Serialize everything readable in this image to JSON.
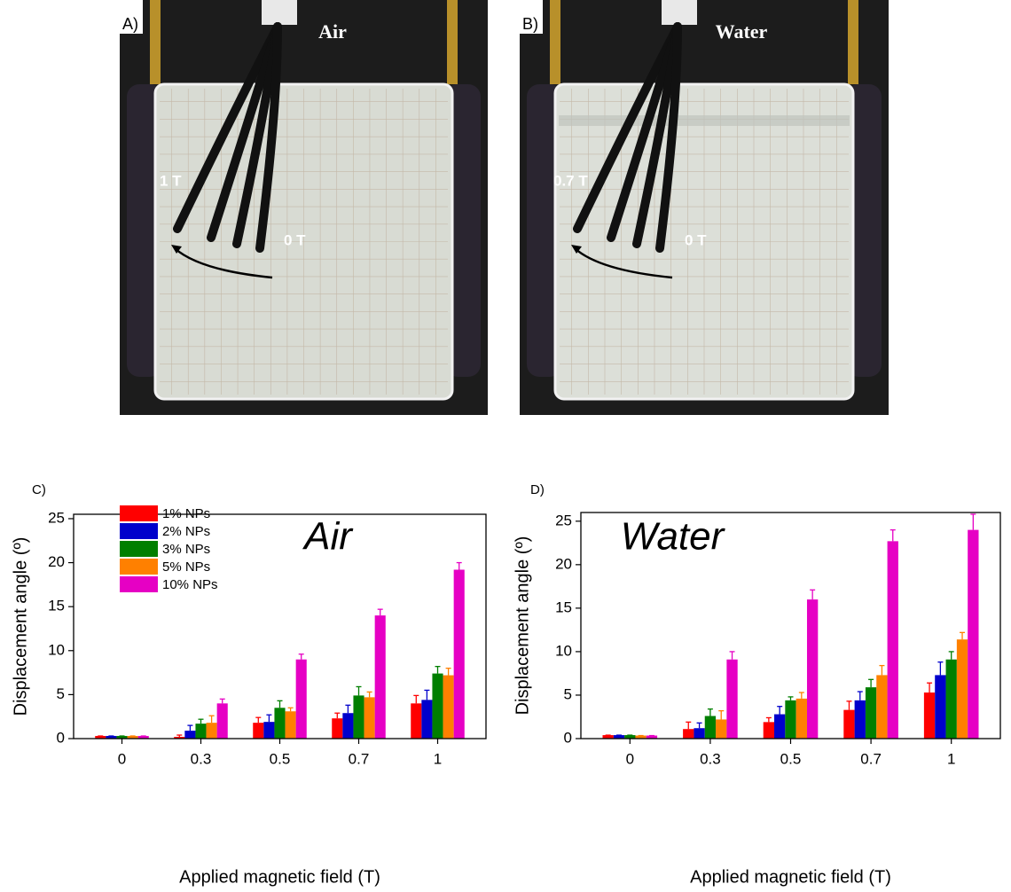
{
  "photos": [
    {
      "label": "A)",
      "medium": "Air",
      "field_label": "1 T",
      "zero_label": "0 T"
    },
    {
      "label": "B)",
      "medium": "Water",
      "field_label": "0.7 T",
      "zero_label": "0 T"
    }
  ],
  "chart_data": [
    {
      "type": "bar",
      "panel_label": "C)",
      "title": "Air",
      "y_label": "Displacement angle (º)",
      "x_label": "Applied magnetic field (T)",
      "categories": [
        "0",
        "0.3",
        "0.5",
        "0.7",
        "1"
      ],
      "series": [
        {
          "name": "1% NPs",
          "color": "#ff0000",
          "values": [
            0.3,
            0.2,
            1.8,
            2.3,
            4.0
          ],
          "errors": [
            0,
            0.2,
            0.6,
            0.6,
            0.9
          ]
        },
        {
          "name": "2% NPs",
          "color": "#0000cc",
          "values": [
            0.3,
            0.9,
            1.9,
            2.9,
            4.4
          ],
          "errors": [
            0,
            0.6,
            0.8,
            0.9,
            1.1
          ]
        },
        {
          "name": "3% NPs",
          "color": "#007f00",
          "values": [
            0.3,
            1.7,
            3.5,
            4.9,
            7.4
          ],
          "errors": [
            0,
            0.5,
            0.8,
            1.0,
            0.8
          ]
        },
        {
          "name": "5% NPs",
          "color": "#ff8000",
          "values": [
            0.3,
            1.8,
            3.1,
            4.7,
            7.2
          ],
          "errors": [
            0,
            0.8,
            0.4,
            0.6,
            0.8
          ]
        },
        {
          "name": "10% NPs",
          "color": "#e600c4",
          "values": [
            0.3,
            4.0,
            9.0,
            14.0,
            19.2
          ],
          "errors": [
            0,
            0.5,
            0.6,
            0.7,
            0.8
          ]
        }
      ],
      "ylim": [
        0,
        25.5
      ],
      "yticks": [
        0,
        5,
        10,
        15,
        20,
        25
      ],
      "legend": "upper left"
    },
    {
      "type": "bar",
      "panel_label": "D)",
      "title": "Water",
      "y_label": "Displacement angle (º)",
      "x_label": "Applied magnetic field (T)",
      "categories": [
        "0",
        "0.3",
        "0.5",
        "0.7",
        "1"
      ],
      "series": [
        {
          "color": "#ff0000",
          "values": [
            0.4,
            1.1,
            1.9,
            3.3,
            5.3
          ],
          "errors": [
            0,
            0.8,
            0.5,
            1.0,
            1.1
          ]
        },
        {
          "color": "#0000cc",
          "values": [
            0.4,
            1.2,
            2.8,
            4.4,
            7.3
          ],
          "errors": [
            0,
            0.6,
            0.9,
            1.0,
            1.5
          ]
        },
        {
          "color": "#007f00",
          "values": [
            0.4,
            2.6,
            4.4,
            5.9,
            9.1
          ],
          "errors": [
            0,
            0.8,
            0.4,
            0.9,
            0.9
          ]
        },
        {
          "color": "#ff8000",
          "values": [
            0.35,
            2.2,
            4.6,
            7.3,
            11.4
          ],
          "errors": [
            0,
            1.0,
            0.7,
            1.1,
            0.8
          ]
        },
        {
          "color": "#e600c4",
          "values": [
            0.35,
            9.1,
            16.0,
            22.7,
            24.0
          ],
          "errors": [
            0,
            0.9,
            1.1,
            1.3,
            1.8
          ]
        }
      ],
      "ylim": [
        0,
        26
      ],
      "yticks": [
        0,
        5,
        10,
        15,
        20,
        25
      ]
    }
  ]
}
